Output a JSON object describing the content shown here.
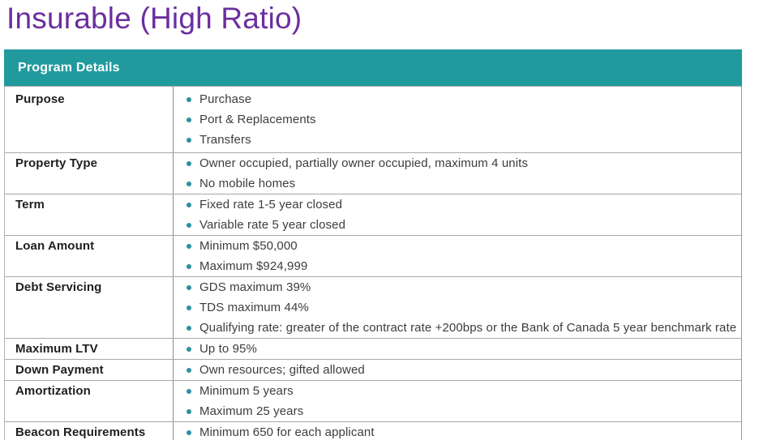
{
  "page": {
    "title": "Insurable (High Ratio)"
  },
  "table": {
    "header": "Program Details",
    "rows": [
      {
        "label": "Purpose",
        "items": [
          "Purchase",
          "Port & Replacements",
          "Transfers"
        ]
      },
      {
        "label": "Property Type",
        "items": [
          "Owner occupied, partially owner occupied, maximum 4 units",
          "No mobile homes"
        ]
      },
      {
        "label": "Term",
        "items": [
          "Fixed rate 1-5 year closed",
          "Variable rate 5 year closed"
        ]
      },
      {
        "label": "Loan Amount",
        "items": [
          "Minimum $50,000",
          "Maximum $924,999"
        ]
      },
      {
        "label": "Debt Servicing",
        "items": [
          "GDS maximum 39%",
          "TDS maximum 44%",
          "Qualifying rate: greater of the contract rate +200bps or the Bank of Canada 5 year benchmark rate"
        ]
      },
      {
        "label": "Maximum LTV",
        "items": [
          "Up to 95%"
        ]
      },
      {
        "label": "Down Payment",
        "items": [
          "Own resources; gifted allowed"
        ]
      },
      {
        "label": "Amortization",
        "items": [
          "Minimum 5 years",
          "Maximum 25 years"
        ]
      },
      {
        "label": "Beacon Requirements",
        "items": [
          "Minimum 650 for each applicant"
        ]
      }
    ]
  },
  "colors": {
    "title_purple": "#6B2E9F",
    "header_teal": "#219A9E",
    "bullet_teal": "#2B91A0",
    "label_text": "#1f1f1f",
    "body_text": "#3d3d3d"
  }
}
